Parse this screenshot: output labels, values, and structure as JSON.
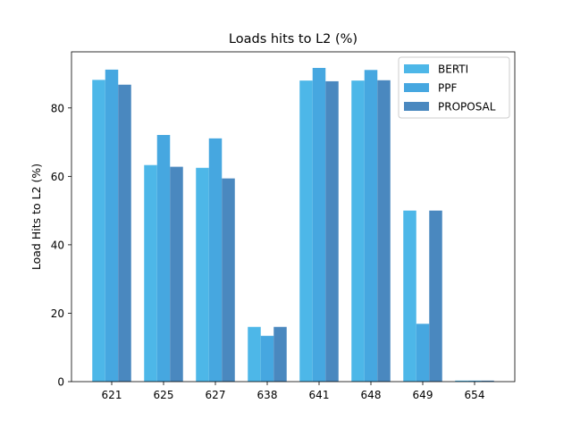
{
  "chart_data": {
    "type": "bar",
    "title": "Loads hits to L2 (%)",
    "xlabel": "",
    "ylabel": "Load Hits to L2 (%)",
    "categories": [
      "621",
      "625",
      "627",
      "638",
      "641",
      "648",
      "649",
      "654"
    ],
    "series": [
      {
        "name": "BERTI",
        "color": "#4db7e8",
        "values": [
          88.2,
          63.3,
          62.5,
          16.0,
          88.0,
          88.0,
          50.0,
          0.3
        ]
      },
      {
        "name": "PPF",
        "color": "#46a7e0",
        "values": [
          91.2,
          72.1,
          71.1,
          13.4,
          91.7,
          91.1,
          16.9,
          0.3
        ]
      },
      {
        "name": "PROPOSAL",
        "color": "#4a88bf",
        "values": [
          86.8,
          62.8,
          59.4,
          16.0,
          87.8,
          88.1,
          50.0,
          0.3
        ]
      }
    ],
    "ylim": [
      0,
      96.4
    ],
    "yticks": [
      0,
      20,
      40,
      60,
      80
    ],
    "grid": false,
    "legend_position": "top-right"
  }
}
